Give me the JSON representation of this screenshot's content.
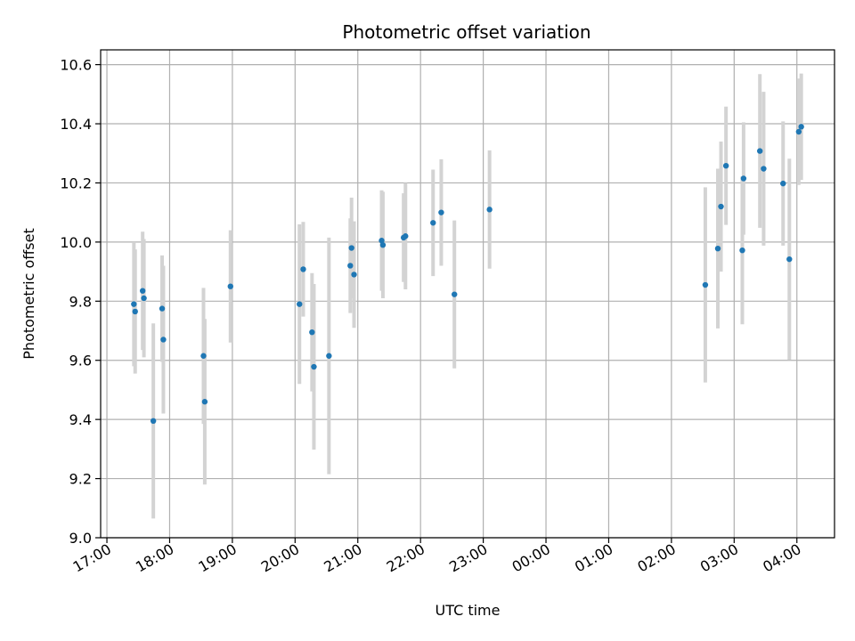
{
  "chart_data": {
    "type": "scatter",
    "title": "Photometric offset variation",
    "xlabel": "UTC time",
    "ylabel": "Photometric offset",
    "x_unit": "UTC time (hours; values above 24 are after midnight)",
    "xlim": [
      16.9,
      28.6
    ],
    "ylim": [
      9.0,
      10.65
    ],
    "x_ticks": [
      {
        "value": 17,
        "label": "17:00"
      },
      {
        "value": 18,
        "label": "18:00"
      },
      {
        "value": 19,
        "label": "19:00"
      },
      {
        "value": 20,
        "label": "20:00"
      },
      {
        "value": 21,
        "label": "21:00"
      },
      {
        "value": 22,
        "label": "22:00"
      },
      {
        "value": 23,
        "label": "23:00"
      },
      {
        "value": 24,
        "label": "00:00"
      },
      {
        "value": 25,
        "label": "01:00"
      },
      {
        "value": 26,
        "label": "02:00"
      },
      {
        "value": 27,
        "label": "03:00"
      },
      {
        "value": 28,
        "label": "04:00"
      }
    ],
    "y_ticks": [
      {
        "value": 9.0,
        "label": "9.0"
      },
      {
        "value": 9.2,
        "label": "9.2"
      },
      {
        "value": 9.4,
        "label": "9.4"
      },
      {
        "value": 9.6,
        "label": "9.6"
      },
      {
        "value": 9.8,
        "label": "9.8"
      },
      {
        "value": 10.0,
        "label": "10.0"
      },
      {
        "value": 10.2,
        "label": "10.2"
      },
      {
        "value": 10.4,
        "label": "10.4"
      },
      {
        "value": 10.6,
        "label": "10.6"
      }
    ],
    "grid": true,
    "colors": {
      "point": "#1f77b4",
      "errorbar": "#d3d3d3",
      "grid": "#b0b0b0"
    },
    "points": [
      {
        "x": 17.43,
        "y": 9.79,
        "err": 0.21
      },
      {
        "x": 17.45,
        "y": 9.765,
        "err": 0.21
      },
      {
        "x": 17.57,
        "y": 9.835,
        "err": 0.2
      },
      {
        "x": 17.59,
        "y": 9.81,
        "err": 0.2
      },
      {
        "x": 17.74,
        "y": 9.395,
        "err": 0.33
      },
      {
        "x": 17.88,
        "y": 9.775,
        "err": 0.18
      },
      {
        "x": 17.9,
        "y": 9.67,
        "err": 0.25
      },
      {
        "x": 18.54,
        "y": 9.615,
        "err": 0.23
      },
      {
        "x": 18.56,
        "y": 9.46,
        "err": 0.28
      },
      {
        "x": 18.97,
        "y": 9.85,
        "err": 0.19
      },
      {
        "x": 20.07,
        "y": 9.79,
        "err": 0.27
      },
      {
        "x": 20.13,
        "y": 9.908,
        "err": 0.16
      },
      {
        "x": 20.27,
        "y": 9.695,
        "err": 0.2
      },
      {
        "x": 20.3,
        "y": 9.578,
        "err": 0.28
      },
      {
        "x": 20.54,
        "y": 9.615,
        "err": 0.4
      },
      {
        "x": 20.88,
        "y": 9.92,
        "err": 0.16
      },
      {
        "x": 20.9,
        "y": 9.98,
        "err": 0.17
      },
      {
        "x": 20.94,
        "y": 9.89,
        "err": 0.18
      },
      {
        "x": 21.38,
        "y": 10.005,
        "err": 0.17
      },
      {
        "x": 21.4,
        "y": 9.99,
        "err": 0.18
      },
      {
        "x": 21.73,
        "y": 10.015,
        "err": 0.15
      },
      {
        "x": 21.76,
        "y": 10.02,
        "err": 0.18
      },
      {
        "x": 22.2,
        "y": 10.065,
        "err": 0.18
      },
      {
        "x": 22.33,
        "y": 10.1,
        "err": 0.18
      },
      {
        "x": 22.54,
        "y": 9.823,
        "err": 0.25
      },
      {
        "x": 23.1,
        "y": 10.11,
        "err": 0.2
      },
      {
        "x": 26.54,
        "y": 9.855,
        "err": 0.33
      },
      {
        "x": 26.74,
        "y": 9.978,
        "err": 0.27
      },
      {
        "x": 26.79,
        "y": 10.12,
        "err": 0.22
      },
      {
        "x": 26.87,
        "y": 10.258,
        "err": 0.2
      },
      {
        "x": 27.15,
        "y": 10.215,
        "err": 0.19
      },
      {
        "x": 27.13,
        "y": 9.972,
        "err": 0.25
      },
      {
        "x": 27.41,
        "y": 10.308,
        "err": 0.26
      },
      {
        "x": 27.47,
        "y": 10.248,
        "err": 0.26
      },
      {
        "x": 27.78,
        "y": 10.198,
        "err": 0.21
      },
      {
        "x": 27.88,
        "y": 9.942,
        "err": 0.34
      },
      {
        "x": 28.03,
        "y": 10.373,
        "err": 0.18
      },
      {
        "x": 28.07,
        "y": 10.39,
        "err": 0.18
      }
    ]
  }
}
